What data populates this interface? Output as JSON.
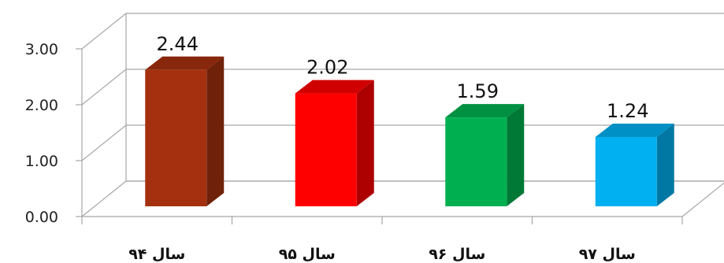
{
  "chart_data": {
    "type": "bar",
    "style": "3d-column",
    "categories": [
      "سال ۹۴",
      "سال ۹۵",
      "سال ۹۶",
      "سال ۹۷"
    ],
    "values": [
      2.44,
      2.02,
      1.59,
      1.24
    ],
    "data_labels": [
      "2.44",
      "2.02",
      "1.59",
      "1.24"
    ],
    "bar_colors": [
      "#a5300f",
      "#ff0000",
      "#00b050",
      "#00b0f0"
    ],
    "y_ticks": [
      "0.00",
      "1.00",
      "2.00",
      "3.00"
    ],
    "ylim": [
      0,
      3
    ],
    "grid": true,
    "legend": "none",
    "title": "",
    "xlabel": "",
    "ylabel": ""
  }
}
